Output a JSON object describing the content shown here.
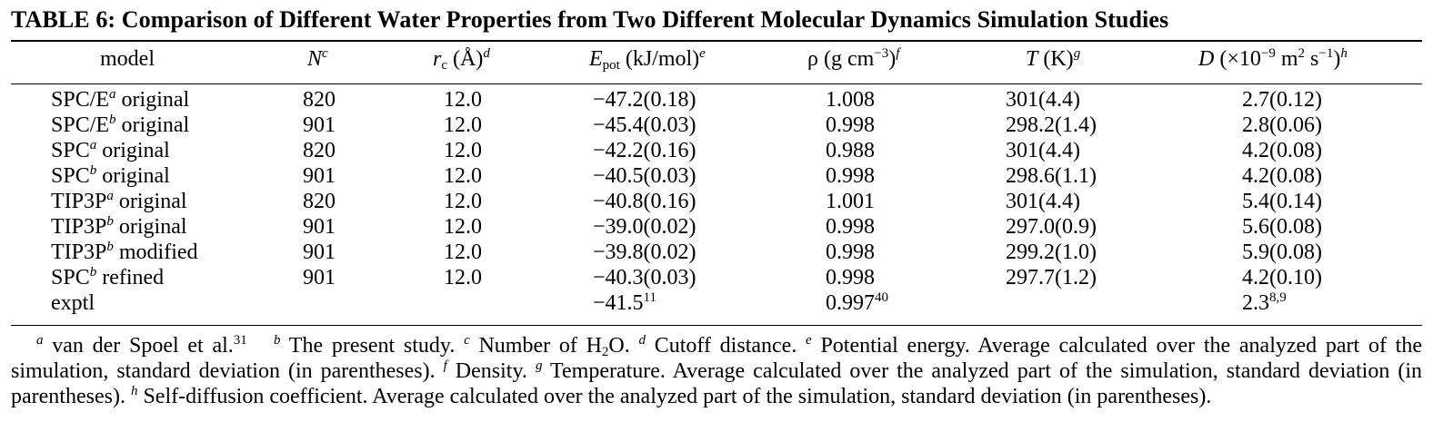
{
  "table": {
    "title": "TABLE 6:  Comparison of Different Water Properties from Two Different Molecular Dynamics Simulation Studies",
    "headers": {
      "model": "model",
      "n": "N",
      "n_sup": "c",
      "rc": "r",
      "rc_sub": "c",
      "rc_unit": " (Å)",
      "rc_sup": "d",
      "epot": "E",
      "epot_sub": "pot",
      "epot_unit": " (kJ/mol)",
      "epot_sup": "e",
      "rho": "ρ (g cm",
      "rho_exp": "−3",
      "rho_close": ")",
      "rho_sup": "f",
      "t": "T",
      "t_unit": " (K)",
      "t_sup": "g",
      "d": "D",
      "d_unit1": " (×10",
      "d_exp": "−9",
      "d_unit2": " m",
      "d_exp2": "2",
      "d_unit3": " s",
      "d_exp3": "−1",
      "d_close": ")",
      "d_sup": "h"
    },
    "rows": [
      {
        "name": "SPC/E",
        "sup": "a",
        "variant": " original",
        "n": "820",
        "rc": "12.0",
        "epot": "−47.2(0.18)",
        "rho": "1.008",
        "t": "301(4.4)",
        "d": "2.7(0.12)"
      },
      {
        "name": "SPC/E",
        "sup": "b",
        "variant": " original",
        "n": "901",
        "rc": "12.0",
        "epot": "−45.4(0.03)",
        "rho": "0.998",
        "t": "298.2(1.4)",
        "d": "2.8(0.06)"
      },
      {
        "name": "SPC",
        "sup": "a",
        "variant": " original",
        "n": "820",
        "rc": "12.0",
        "epot": "−42.2(0.16)",
        "rho": "0.988",
        "t": "301(4.4)",
        "d": "4.2(0.08)"
      },
      {
        "name": "SPC",
        "sup": "b",
        "variant": " original",
        "n": "901",
        "rc": "12.0",
        "epot": "−40.5(0.03)",
        "rho": "0.998",
        "t": "298.6(1.1)",
        "d": "4.2(0.08)"
      },
      {
        "name": "TIP3P",
        "sup": "a",
        "variant": " original",
        "n": "820",
        "rc": "12.0",
        "epot": "−40.8(0.16)",
        "rho": "1.001",
        "t": "301(4.4)",
        "d": "5.4(0.14)"
      },
      {
        "name": "TIP3P",
        "sup": "b",
        "variant": " original",
        "n": "901",
        "rc": "12.0",
        "epot": "−39.0(0.02)",
        "rho": "0.998",
        "t": "297.0(0.9)",
        "d": "5.6(0.08)"
      },
      {
        "name": "TIP3P",
        "sup": "b",
        "variant": " modified",
        "n": "901",
        "rc": "12.0",
        "epot": "−39.8(0.02)",
        "rho": "0.998",
        "t": "299.2(1.0)",
        "d": "5.9(0.08)"
      },
      {
        "name": "SPC",
        "sup": "b",
        "variant": " refined",
        "n": "901",
        "rc": "12.0",
        "epot": "−40.3(0.03)",
        "rho": "0.998",
        "t": "297.7(1.2)",
        "d": "4.2(0.10)"
      }
    ],
    "exptl": {
      "name": "exptl",
      "epot": "−41.5",
      "epot_ref": "11",
      "rho": "0.997",
      "rho_ref": "40",
      "d": "2.3",
      "d_ref": "8,9"
    }
  },
  "footnotes": {
    "a_mark": "a",
    "a_text": " van der Spoel et al.",
    "a_ref": "31",
    "b_mark": "b",
    "b_text": " The present study. ",
    "c_mark": "c",
    "c_text1": " Number of H",
    "c_sub": "2",
    "c_text2": "O. ",
    "d_mark": "d",
    "d_text": " Cutoff distance. ",
    "e_mark": "e",
    "e_text": " Potential energy. Average calculated over the analyzed part of the simulation, standard deviation (in parentheses). ",
    "f_mark": "f",
    "f_text": " Density. ",
    "g_mark": "g",
    "g_text": " Temperature. Average calculated over the analyzed part of the simulation, standard deviation (in parentheses). ",
    "h_mark": "h",
    "h_text": " Self-diffusion coefficient. Average calculated over the analyzed part of the simulation, standard deviation (in parentheses)."
  }
}
